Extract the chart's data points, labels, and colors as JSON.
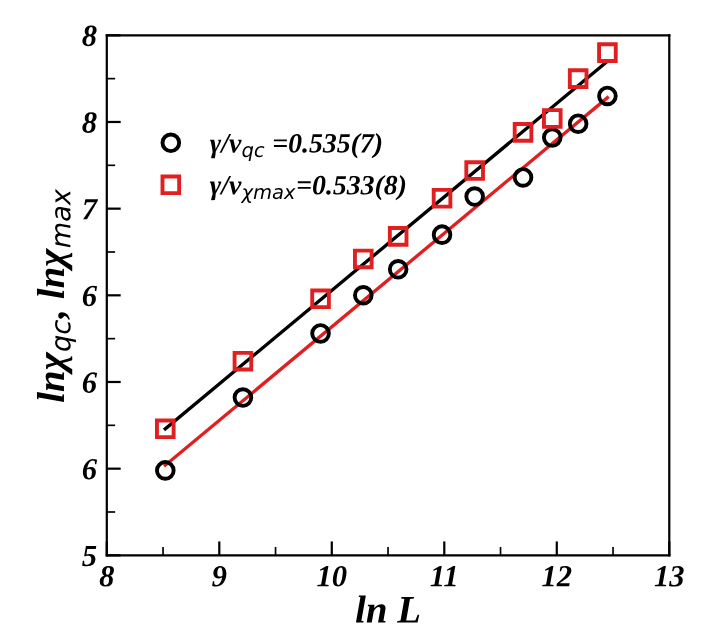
{
  "chart_data": {
    "type": "scatter",
    "xlabel": "ln L",
    "ylabel": "lnχ$_{qc}$, lnχ$_{max}$",
    "xlim": [
      8,
      13
    ],
    "xticks": [
      8,
      9,
      10,
      11,
      12,
      13
    ],
    "ylim": [
      5,
      8
    ],
    "yticks": [
      5,
      {
        "value": 5.5,
        "label": "6"
      },
      6,
      {
        "value": 6.5,
        "label": "6"
      },
      7,
      {
        "value": 7.5,
        "label": "8"
      },
      8
    ],
    "grid": false,
    "legend": "top left",
    "series": [
      {
        "name": "γ/ν$_{qc}$ =0.535(7)",
        "color": "#000000",
        "marker": "circle",
        "x": [
          8.52,
          9.21,
          9.9,
          10.28,
          10.59,
          10.98,
          11.27,
          11.7,
          11.96,
          12.19,
          12.45
        ],
        "values": [
          5.49,
          5.91,
          6.28,
          6.5,
          6.65,
          6.85,
          7.07,
          7.18,
          7.41,
          7.49,
          7.65
        ]
      },
      {
        "name": "γ/ν$_{χmax}$=0.533(8)",
        "color": "#e02020",
        "marker": "square",
        "x": [
          8.52,
          9.21,
          9.9,
          10.28,
          10.59,
          10.98,
          11.27,
          11.7,
          11.96,
          12.19,
          12.45
        ],
        "values": [
          5.73,
          6.12,
          6.48,
          6.71,
          6.84,
          7.06,
          7.22,
          7.44,
          7.52,
          7.75,
          7.9
        ]
      },
      {
        "type": "line",
        "color": "#000000",
        "marker": "none",
        "x": [
          8.52,
          12.45
        ],
        "values": [
          5.73,
          7.85
        ]
      },
      {
        "type": "line",
        "color": "#e02020",
        "marker": "none",
        "x": [
          8.52,
          12.45
        ],
        "values": [
          5.52,
          7.64
        ]
      }
    ]
  }
}
